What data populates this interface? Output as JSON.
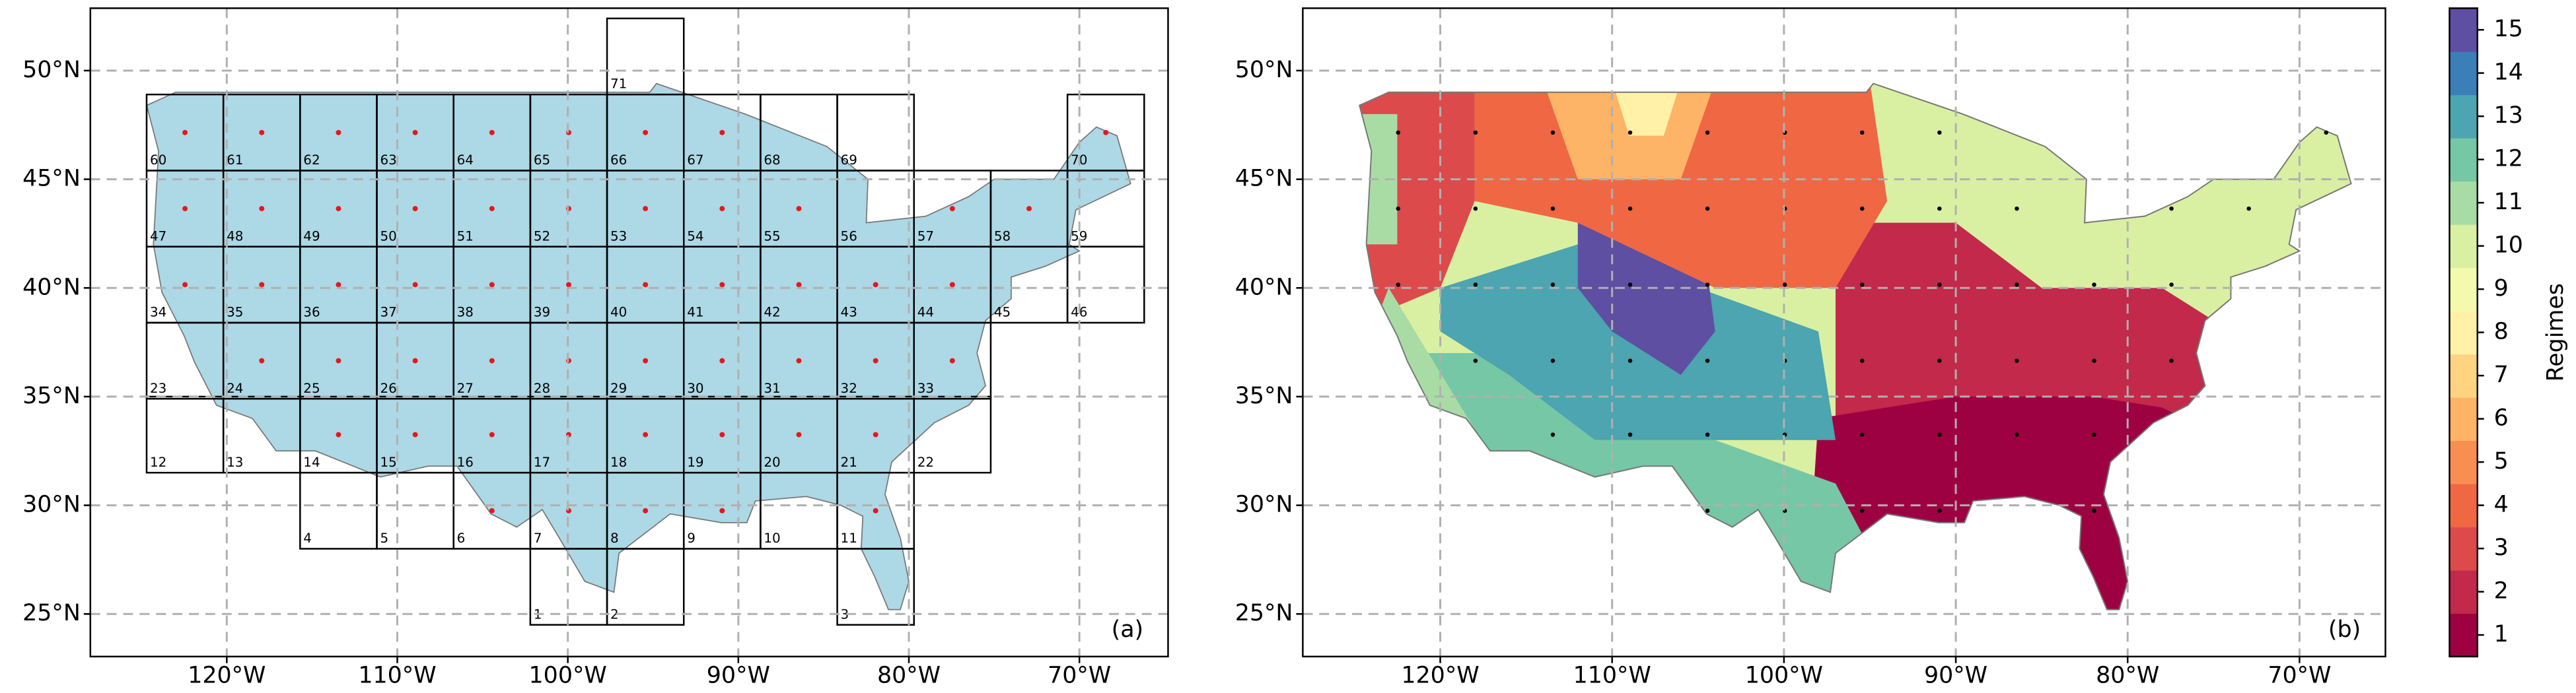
{
  "panels": [
    {
      "label": "(a)",
      "xlim": [
        -128,
        -64.8
      ],
      "ylim": [
        23.04,
        52.87
      ],
      "grid": true,
      "xticks": [
        {
          "value": -120,
          "label": "120°W"
        },
        {
          "value": -110,
          "label": "110°W"
        },
        {
          "value": -100,
          "label": "100°W"
        },
        {
          "value": -90,
          "label": "90°W"
        },
        {
          "value": -80,
          "label": "80°W"
        },
        {
          "value": -70,
          "label": "70°W"
        }
      ],
      "yticks": [
        {
          "value": 25,
          "label": "25°N"
        },
        {
          "value": 30,
          "label": "30°N"
        },
        {
          "value": 35,
          "label": "35°N"
        },
        {
          "value": 40,
          "label": "40°N"
        },
        {
          "value": 45,
          "label": "45°N"
        },
        {
          "value": 50,
          "label": "50°N"
        }
      ],
      "cell_labels": [
        "1",
        "2",
        "3",
        "4",
        "5",
        "6",
        "7",
        "8",
        "9",
        "10",
        "11",
        "12",
        "13",
        "14",
        "15",
        "16",
        "17",
        "18",
        "19",
        "20",
        "21",
        "22",
        "23",
        "24",
        "25",
        "26",
        "27",
        "28",
        "29",
        "30",
        "31",
        "32",
        "33",
        "34",
        "35",
        "36",
        "37",
        "38",
        "39",
        "40",
        "41",
        "42",
        "43",
        "44",
        "45",
        "46",
        "47",
        "48",
        "49",
        "50",
        "51",
        "52",
        "53",
        "54",
        "55",
        "56",
        "57",
        "58",
        "59",
        "60",
        "61",
        "62",
        "63",
        "64",
        "65",
        "66",
        "67",
        "68",
        "69",
        "70",
        "71"
      ]
    },
    {
      "label": "(b)",
      "xlim": [
        -128,
        -65
      ],
      "ylim": [
        23.04,
        52.87
      ],
      "grid": true,
      "xticks": [
        {
          "value": -120,
          "label": "120°W"
        },
        {
          "value": -110,
          "label": "110°W"
        },
        {
          "value": -100,
          "label": "100°W"
        },
        {
          "value": -90,
          "label": "90°W"
        },
        {
          "value": -80,
          "label": "80°W"
        },
        {
          "value": -70,
          "label": "70°W"
        }
      ],
      "yticks": [
        {
          "value": 25,
          "label": "25°N"
        },
        {
          "value": 30,
          "label": "30°N"
        },
        {
          "value": 35,
          "label": "35°N"
        },
        {
          "value": 40,
          "label": "40°N"
        },
        {
          "value": 45,
          "label": "45°N"
        },
        {
          "value": 50,
          "label": "50°N"
        }
      ]
    }
  ],
  "colorbar": {
    "title": "Regimes",
    "lim": [
      0.5,
      15.5
    ],
    "ticks": [
      1,
      2,
      3,
      4,
      5,
      6,
      7,
      8,
      9,
      10,
      11,
      12,
      13,
      14,
      15
    ],
    "colors": [
      "#9e0142",
      "#c2294a",
      "#dd4a4c",
      "#f06744",
      "#f98e52",
      "#fdb466",
      "#fed481",
      "#fff1a8",
      "#f4faad",
      "#d9f0a3",
      "#a9dca4",
      "#76c7a5",
      "#4ca5b0",
      "#3c7fb8",
      "#5e4fa2"
    ]
  }
}
